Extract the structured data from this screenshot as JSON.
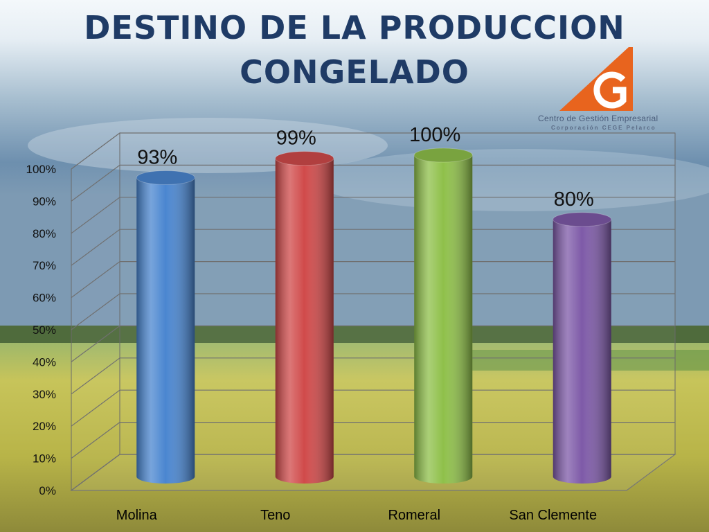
{
  "title": {
    "line1": "DESTINO DE LA PRODUCCION",
    "line2": "CONGELADO"
  },
  "logo": {
    "name": "Centro de Gestión Empresarial",
    "subtitle": "Corporación CEGE Pelarco",
    "accent_color": "#e8641e"
  },
  "chart_data": {
    "type": "bar",
    "categories": [
      "Molina",
      "Teno",
      "Romeral",
      "San Clemente"
    ],
    "values": [
      93,
      99,
      100,
      80
    ],
    "data_labels": [
      "93%",
      "99%",
      "100%",
      "80%"
    ],
    "colors": [
      "#4a86d0",
      "#d04a4a",
      "#8fc04a",
      "#7e5aa8"
    ],
    "yticks": [
      "0%",
      "10%",
      "20%",
      "30%",
      "40%",
      "50%",
      "60%",
      "70%",
      "80%",
      "90%",
      "100%"
    ],
    "ylim": [
      0,
      100
    ],
    "grid": true,
    "style": "3d-cylinder"
  }
}
